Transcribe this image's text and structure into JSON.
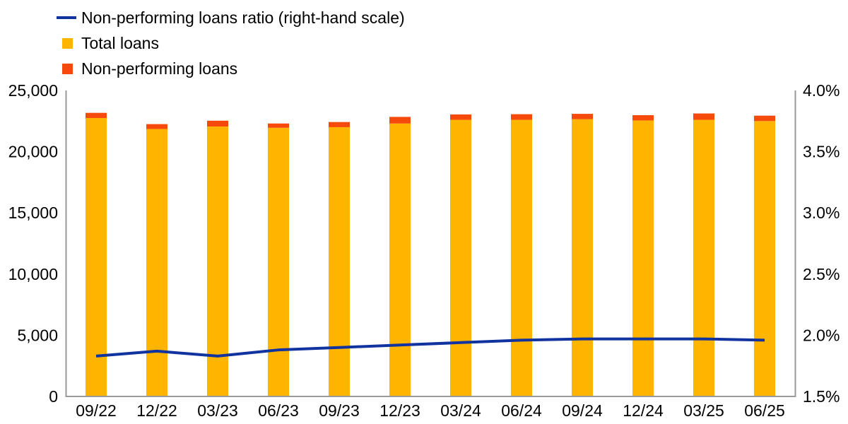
{
  "legend": {
    "items": [
      {
        "label": "Non-performing loans ratio (right-hand scale)",
        "marker": "line"
      },
      {
        "label": "Total loans",
        "marker": "square"
      },
      {
        "label": "Non-performing loans",
        "marker": "square"
      }
    ]
  },
  "colors": {
    "line": "#10339F",
    "total": "#FFB400",
    "npl": "#F64A0C",
    "axis": "#9A9A9A",
    "text": "#000000"
  },
  "chart_data": {
    "type": "bar",
    "subtype": "stacked-bars-with-right-axis-line",
    "title": "",
    "categories": [
      "09/22",
      "12/22",
      "03/23",
      "06/23",
      "09/23",
      "12/23",
      "03/24",
      "06/24",
      "09/24",
      "12/24",
      "03/25",
      "06/25"
    ],
    "series": [
      {
        "name": "Total loans",
        "type": "bar",
        "stack": "loans",
        "axis": "left",
        "color": "#FFB400",
        "values": [
          22750,
          21850,
          22050,
          21950,
          22000,
          22300,
          22600,
          22600,
          22650,
          22550,
          22600,
          22500
        ]
      },
      {
        "name": "Non-performing loans",
        "type": "bar",
        "stack": "loans",
        "axis": "left",
        "color": "#F64A0C",
        "values": [
          420,
          400,
          480,
          350,
          420,
          540,
          440,
          460,
          440,
          430,
          520,
          440
        ]
      },
      {
        "name": "Non-performing loans ratio (right-hand scale)",
        "type": "line",
        "axis": "right",
        "unit": "%",
        "color": "#10339F",
        "values": [
          1.83,
          1.87,
          1.83,
          1.88,
          1.9,
          1.92,
          1.94,
          1.96,
          1.97,
          1.97,
          1.97,
          1.96
        ]
      }
    ],
    "left_axis": {
      "min": 0,
      "max": 25000,
      "step": 5000,
      "tick_labels": [
        "0",
        "5,000",
        "10,000",
        "15,000",
        "20,000",
        "25,000"
      ]
    },
    "right_axis": {
      "min": 1.5,
      "max": 4.0,
      "step": 0.5,
      "tick_labels": [
        "1.5%",
        "2.0%",
        "2.5%",
        "3.0%",
        "3.5%",
        "4.0%"
      ]
    },
    "grid": false,
    "legend_position": "top-left"
  }
}
